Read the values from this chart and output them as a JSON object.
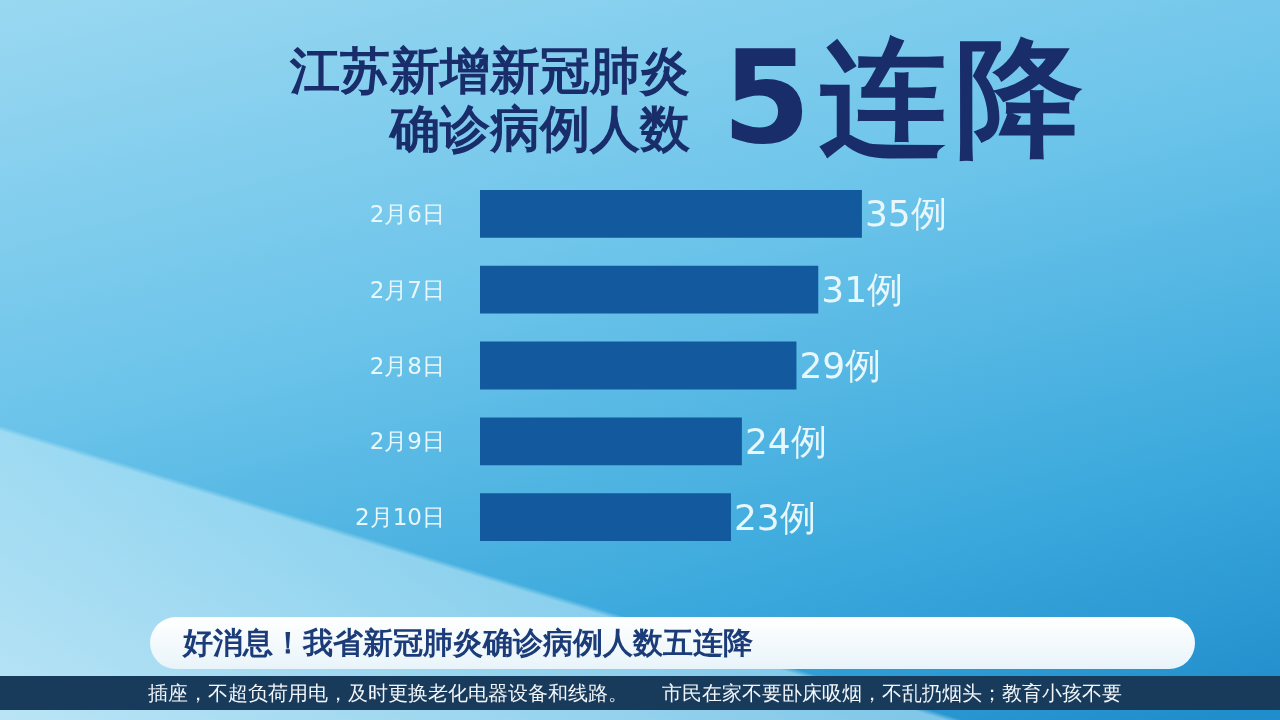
{
  "chart_data": {
    "type": "bar",
    "orientation": "horizontal",
    "title": "江苏新增新冠肺炎确诊病例人数",
    "subtitle": "5连降",
    "categories": [
      "2月6日",
      "2月7日",
      "2月8日",
      "2月9日",
      "2月10日"
    ],
    "values": [
      35,
      31,
      29,
      24,
      23
    ],
    "color": "#12599e",
    "value_labels": [
      "35例",
      "31例",
      "29例",
      "24例",
      "23例"
    ],
    "tick_labels": "y",
    "annotations": [
      "好消息！我省新冠肺炎确诊病例人数五连降",
      "插座，不超负荷用电，及时更换老化电器设备和线路。",
      "市民在家不要卧床吸烟，不乱扔烟头；教育小孩不要"
    ]
  }
}
